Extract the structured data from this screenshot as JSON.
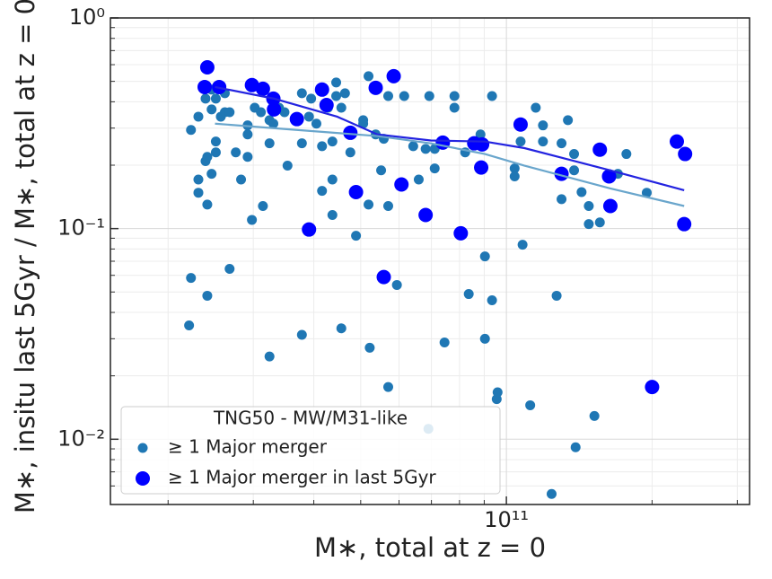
{
  "chart_data": {
    "type": "scatter",
    "xlabel": "M∗, total at z = 0",
    "ylabel": "M∗, insitu last 5Gyr / M∗, total at z = 0",
    "xscale": "log",
    "yscale": "log",
    "xlim": [
      15200000000.0,
      318000000000.0
    ],
    "ylim": [
      0.0049,
      1
    ],
    "xticks": [
      {
        "value": 100000000000.0,
        "label": "10¹¹"
      }
    ],
    "yticks": [
      {
        "value": 0.01,
        "label": "10⁻²"
      },
      {
        "value": 0.1,
        "label": "10⁻¹"
      },
      {
        "value": 1,
        "label": "10⁰"
      }
    ],
    "xminorticks": [
      20000000000.0,
      30000000000.0,
      40000000000.0,
      50000000000.0,
      60000000000.0,
      70000000000.0,
      80000000000.0,
      90000000000.0,
      200000000000.0,
      300000000000.0
    ],
    "yminorticks": [
      0.006,
      0.007,
      0.008,
      0.009,
      0.02,
      0.03,
      0.04,
      0.05,
      0.06,
      0.07,
      0.08,
      0.09,
      0.2,
      0.3,
      0.4,
      0.5,
      0.6,
      0.7,
      0.8,
      0.9
    ],
    "grid": true,
    "legend_title": "TNG50 - MW/M31-like",
    "legend_loc": "lower left",
    "series": [
      {
        "name": "≥ 1 Major merger",
        "color": "#1f77b4",
        "x": [
          22300000000.0,
          23100000000.0,
          23100000000.0,
          23100000000.0,
          23900000000.0,
          24100000000.0,
          24100000000.0,
          24600000000.0,
          25100000000.0,
          25100000000.0,
          23900000000.0,
          24600000000.0,
          25100000000.0,
          25700000000.0,
          26200000000.0,
          26800000000.0,
          22300000000.0,
          22100000000.0,
          24100000000.0,
          26800000000.0,
          24600000000.0,
          26200000000.0,
          27600000000.0,
          28300000000.0,
          29200000000.0,
          29200000000.0,
          29200000000.0,
          29800000000.0,
          30200000000.0,
          31100000000.0,
          31400000000.0,
          32400000000.0,
          32400000000.0,
          33000000000.0,
          33900000000.0,
          34800000000.0,
          35300000000.0,
          37800000000.0,
          37800000000.0,
          39100000000.0,
          39500000000.0,
          40500000000.0,
          41600000000.0,
          41600000000.0,
          42800000000.0,
          43700000000.0,
          43700000000.0,
          43700000000.0,
          44500000000.0,
          44500000000.0,
          45600000000.0,
          46400000000.0,
          47600000000.0,
          48900000000.0,
          50600000000.0,
          50600000000.0,
          51900000000.0,
          51900000000.0,
          53700000000.0,
          55100000000.0,
          55800000000.0,
          57000000000.0,
          57000000000.0,
          59400000000.0,
          61500000000.0,
          64200000000.0,
          65900000000.0,
          68100000000.0,
          69300000000.0,
          71100000000.0,
          71100000000.0,
          74500000000.0,
          78100000000.0,
          78100000000.0,
          82200000000.0,
          83600000000.0,
          88400000000.0,
          90300000000.0,
          90300000000.0,
          93400000000.0,
          93400000000.0,
          95500000000.0,
          104000000000.0,
          104000000000.0,
          107000000000.0,
          108000000000.0,
          112000000000.0,
          115000000000.0,
          119000000000.0,
          119000000000.0,
          124000000000.0,
          127000000000.0,
          130000000000.0,
          130000000000.0,
          134000000000.0,
          138000000000.0,
          139000000000.0,
          143000000000.0,
          148000000000.0,
          148000000000.0,
          152000000000.0,
          156000000000.0,
          177000000000.0,
          195000000000.0,
          170000000000.0,
          138000000000.0,
          69000000000.0,
          57000000000.0,
          52200000000.0,
          32400000000.0,
          37800000000.0,
          45600000000.0,
          95900000000.0
        ],
        "y": [
          0.294,
          0.171,
          0.148,
          0.34,
          0.209,
          0.219,
          0.13,
          0.182,
          0.259,
          0.23,
          0.414,
          0.368,
          0.414,
          0.34,
          0.357,
          0.357,
          0.0583,
          0.0347,
          0.048,
          0.0644,
          0.457,
          0.439,
          0.23,
          0.171,
          0.28,
          0.309,
          0.219,
          0.11,
          0.375,
          0.357,
          0.128,
          0.254,
          0.327,
          0.315,
          0.375,
          0.357,
          0.199,
          0.439,
          0.254,
          0.34,
          0.414,
          0.315,
          0.246,
          0.151,
          0.375,
          0.116,
          0.171,
          0.259,
          0.494,
          0.426,
          0.375,
          0.439,
          0.23,
          0.0925,
          0.315,
          0.327,
          0.529,
          0.13,
          0.28,
          0.189,
          0.267,
          0.128,
          0.426,
          0.054,
          0.426,
          0.246,
          0.171,
          0.239,
          0.426,
          0.193,
          0.239,
          0.0288,
          0.375,
          0.426,
          0.23,
          0.0489,
          0.28,
          0.0738,
          0.03,
          0.426,
          0.0457,
          0.0155,
          0.193,
          0.177,
          0.259,
          0.0838,
          0.0145,
          0.375,
          0.309,
          0.259,
          0.0055,
          0.048,
          0.254,
          0.138,
          0.327,
          0.189,
          0.00916,
          0.149,
          0.128,
          0.105,
          0.0129,
          0.107,
          0.226,
          0.148,
          0.182,
          0.226,
          0.0112,
          0.0177,
          0.0272,
          0.0247,
          0.0313,
          0.0336,
          0.0167
        ]
      },
      {
        "name": "≥ 1 Major merger in last 5Gyr",
        "color": "#0000ff",
        "x": [
          24100000000.0,
          23800000000.0,
          25500000000.0,
          29800000000.0,
          31400000000.0,
          33000000000.0,
          33100000000.0,
          36900000000.0,
          39100000000.0,
          41600000000.0,
          42500000000.0,
          47600000000.0,
          48900000000.0,
          53700000000.0,
          55800000000.0,
          58500000000.0,
          60700000000.0,
          68100000000.0,
          73900000000.0,
          80500000000.0,
          85800000000.0,
          89100000000.0,
          88700000000.0,
          107000000000.0,
          130000000000.0,
          156000000000.0,
          163000000000.0,
          164000000000.0,
          225000000000.0,
          234000000000.0,
          233000000000.0,
          200000000000.0
        ],
        "y": [
          0.583,
          0.47,
          0.47,
          0.48,
          0.461,
          0.414,
          0.368,
          0.331,
          0.099,
          0.457,
          0.386,
          0.285,
          0.149,
          0.466,
          0.0589,
          0.529,
          0.162,
          0.116,
          0.256,
          0.095,
          0.254,
          0.251,
          0.195,
          0.312,
          0.182,
          0.237,
          0.177,
          0.128,
          0.259,
          0.226,
          0.105,
          0.0177
        ]
      }
    ],
    "lines": [
      {
        "color": "#2323e0",
        "x": [
          25000000000.0,
          33100000000.0,
          44700000000.0,
          54100000000.0,
          69800000000.0,
          90300000000.0,
          109000000000.0,
          164000000000.0,
          233000000000.0
        ],
        "y": [
          0.47,
          0.414,
          0.34,
          0.28,
          0.262,
          0.259,
          0.241,
          0.189,
          0.152
        ]
      },
      {
        "color": "#6aa6cc",
        "x": [
          25000000000.0,
          36900000000.0,
          54100000000.0,
          69800000000.0,
          90300000000.0,
          109000000000.0,
          164000000000.0,
          233000000000.0
        ],
        "y": [
          0.315,
          0.294,
          0.275,
          0.254,
          0.226,
          0.199,
          0.155,
          0.128
        ]
      }
    ]
  }
}
